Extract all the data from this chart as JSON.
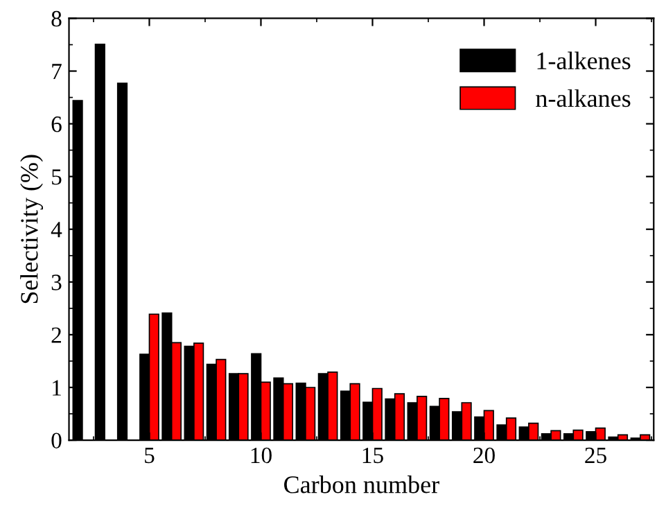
{
  "chart_data": {
    "type": "bar",
    "xlabel": "Carbon number",
    "ylabel": "Selectivity (%)",
    "x": [
      2,
      3,
      4,
      5,
      6,
      7,
      8,
      9,
      10,
      11,
      12,
      13,
      14,
      15,
      16,
      17,
      18,
      19,
      20,
      21,
      22,
      23,
      24,
      25,
      26,
      27
    ],
    "series": [
      {
        "name": "1-alkenes",
        "color": "#000000",
        "values": [
          6.44,
          7.51,
          6.77,
          1.63,
          2.41,
          1.78,
          1.44,
          1.26,
          1.64,
          1.18,
          1.08,
          1.26,
          0.93,
          0.72,
          0.78,
          0.71,
          0.64,
          0.54,
          0.44,
          0.29,
          0.25,
          0.12,
          0.12,
          0.16,
          0.06,
          0.04
        ]
      },
      {
        "name": "n-alkanes",
        "color": "#ff0000",
        "values": [
          null,
          null,
          null,
          2.39,
          1.85,
          1.84,
          1.53,
          1.26,
          1.1,
          1.07,
          1.0,
          1.29,
          1.07,
          0.98,
          0.88,
          0.83,
          0.79,
          0.71,
          0.56,
          0.42,
          0.32,
          0.18,
          0.19,
          0.23,
          0.1,
          0.1
        ]
      }
    ],
    "xlim": [
      1.4,
      27.6
    ],
    "xticks": [
      5,
      10,
      15,
      20,
      25
    ],
    "ylim": [
      0,
      8
    ],
    "yticks": [
      0,
      1,
      2,
      3,
      4,
      5,
      6,
      7,
      8
    ],
    "legend": "top right",
    "grid": false
  }
}
